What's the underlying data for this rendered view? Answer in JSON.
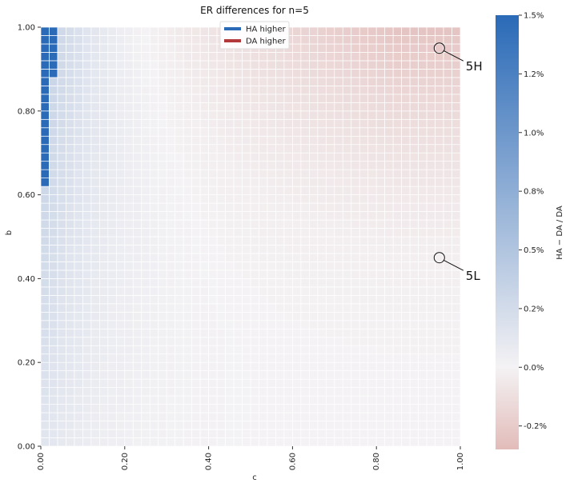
{
  "chart_data": {
    "type": "heatmap",
    "title": "ER differences for n=5",
    "xlabel": "c",
    "ylabel": "b",
    "xlim": [
      0,
      1
    ],
    "ylim": [
      0,
      1
    ],
    "grid_size": 50,
    "x_ticks": [
      {
        "value": 0.0,
        "label": "0.00"
      },
      {
        "value": 0.2,
        "label": "0.20"
      },
      {
        "value": 0.4,
        "label": "0.40"
      },
      {
        "value": 0.6,
        "label": "0.60"
      },
      {
        "value": 0.8,
        "label": "0.80"
      },
      {
        "value": 1.0,
        "label": "1.00"
      }
    ],
    "y_ticks": [
      {
        "value": 0.0,
        "label": "0.00"
      },
      {
        "value": 0.2,
        "label": "0.20"
      },
      {
        "value": 0.4,
        "label": "0.40"
      },
      {
        "value": 0.6,
        "label": "0.60"
      },
      {
        "value": 0.8,
        "label": "0.80"
      },
      {
        "value": 1.0,
        "label": "1.00"
      }
    ],
    "colorbar": {
      "label": "HA − DA / DA",
      "vmin": -0.35,
      "vmax": 1.5,
      "ticks": [
        {
          "value": 1.5,
          "label": "1.5%"
        },
        {
          "value": 1.25,
          "label": "1.2%"
        },
        {
          "value": 1.0,
          "label": "1.0%"
        },
        {
          "value": 0.75,
          "label": "0.8%"
        },
        {
          "value": 0.5,
          "label": "0.5%"
        },
        {
          "value": 0.25,
          "label": "0.2%"
        },
        {
          "value": 0.0,
          "label": "0.0%"
        },
        {
          "value": -0.25,
          "label": "-0.2%"
        }
      ],
      "colors": {
        "low": "#e2bcb9",
        "mid": "#f4f2f4",
        "high": "#2a6ab7"
      }
    },
    "legend": {
      "placement": "top-center",
      "entries": [
        {
          "label": "HA higher",
          "color": "#2a6ab7"
        },
        {
          "label": "DA higher",
          "color": "#b23a3c"
        }
      ]
    },
    "saturated_region": {
      "value": 1.5,
      "description_cells": [
        {
          "c_max": 0.04,
          "b_min": 0.89
        },
        {
          "c_max": 0.02,
          "b_min": 0.62
        }
      ]
    },
    "annotations": [
      {
        "label": "5H",
        "c": 0.95,
        "b": 0.95
      },
      {
        "label": "5L",
        "c": 0.95,
        "b": 0.45
      }
    ]
  }
}
